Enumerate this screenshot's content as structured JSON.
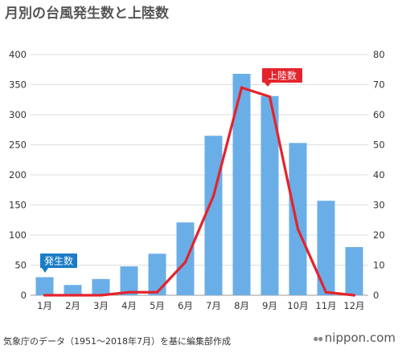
{
  "title": "月別の台風発生数と上陸数",
  "source": "気象庁のデータ（1951〜2018年7月）を基に編集部作成",
  "brand": "nippon.com",
  "colors": {
    "bar": "#6aaee7",
    "line": "#e5232b",
    "callout_bar": "#1a7cc7",
    "callout_line": "#e5232b",
    "grid": "#dddddd"
  },
  "chart_data": {
    "type": "bar",
    "categories": [
      "1月",
      "2月",
      "3月",
      "4月",
      "5月",
      "6月",
      "7月",
      "8月",
      "9月",
      "10月",
      "11月",
      "12月"
    ],
    "series": [
      {
        "name": "発生数",
        "type": "bar",
        "axis": "left",
        "values": [
          30,
          17,
          27,
          48,
          69,
          121,
          265,
          368,
          331,
          253,
          157,
          80
        ]
      },
      {
        "name": "上陸数",
        "type": "line",
        "axis": "right",
        "values": [
          0,
          0,
          0,
          1,
          1,
          11,
          33,
          69,
          66,
          22,
          1,
          0
        ]
      }
    ],
    "y_left": {
      "min": 0,
      "max": 400,
      "ticks": [
        0,
        50,
        100,
        150,
        200,
        250,
        300,
        350,
        400
      ]
    },
    "y_right": {
      "min": 0,
      "max": 80,
      "ticks": [
        0,
        10,
        20,
        30,
        40,
        50,
        60,
        70,
        80
      ]
    },
    "grid": true
  }
}
